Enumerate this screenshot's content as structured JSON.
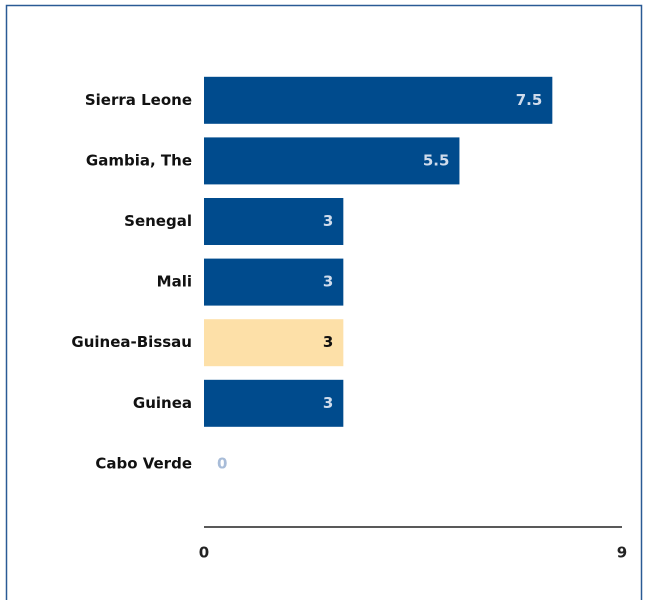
{
  "chart_data": {
    "type": "bar",
    "orientation": "horizontal",
    "categories": [
      "Sierra Leone",
      "Gambia, The",
      "Senegal",
      "Mali",
      "Guinea-Bissau",
      "Guinea",
      "Cabo Verde"
    ],
    "values": [
      7.5,
      5.5,
      3,
      3,
      3,
      3,
      0
    ],
    "colors": [
      "#004b8d",
      "#004b8d",
      "#004b8d",
      "#004b8d",
      "#fde0a8",
      "#004b8d",
      "#004b8d"
    ],
    "xlim": [
      0,
      9
    ],
    "xticks": [
      0,
      9
    ]
  }
}
